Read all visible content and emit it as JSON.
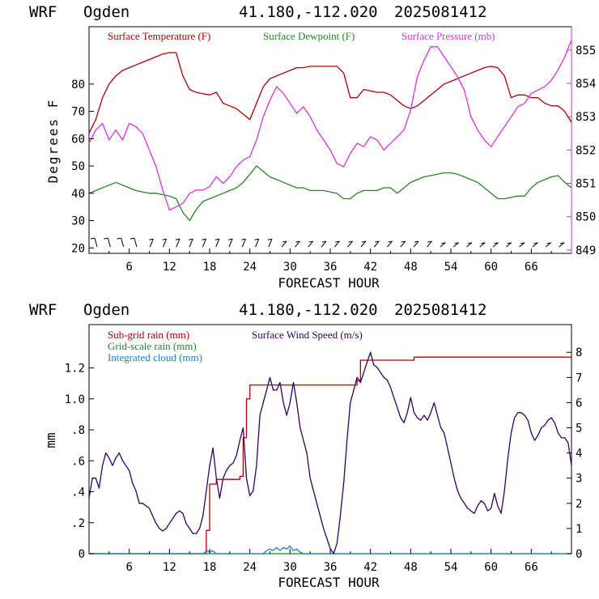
{
  "header": {
    "model": "WRF",
    "site": "Ogden",
    "coords": "41.180,-112.020",
    "run": "2025081412"
  },
  "colors": {
    "temp": "#b30000",
    "dew": "#228822",
    "pres": "#dd33dd",
    "rain_sub": "#b30000",
    "rain_grid": "#228822",
    "cloud": "#1e7fd0",
    "wind": "#330066"
  },
  "chart_data": [
    {
      "type": "line",
      "name": "surface",
      "xlabel": "FORECAST HOUR",
      "ylabel": "Degrees F",
      "xlim": [
        0,
        72
      ],
      "ylim": [
        18,
        101
      ],
      "y2lim": [
        848.9,
        855.7
      ],
      "x_ticks": [
        6,
        12,
        18,
        24,
        30,
        36,
        42,
        48,
        54,
        60,
        66
      ],
      "y_ticks": [
        20,
        30,
        40,
        50,
        60,
        70,
        80
      ],
      "y2_ticks": [
        849,
        850,
        851,
        852,
        853,
        854,
        855
      ],
      "legend": [
        "Surface Temperature (F)",
        "Surface Dewpoint (F)",
        "Surface Pressure (mb)"
      ],
      "series": [
        {
          "name": "Surface Temperature (F)",
          "axis": "left",
          "x": [
            0,
            1,
            2,
            3,
            4,
            5,
            6,
            7,
            8,
            9,
            10,
            11,
            12,
            13,
            14,
            15,
            16,
            17,
            18,
            19,
            20,
            21,
            22,
            23,
            24,
            25,
            26,
            27,
            28,
            29,
            30,
            31,
            32,
            33,
            34,
            35,
            36,
            37,
            38,
            39,
            40,
            41,
            42,
            43,
            44,
            45,
            46,
            47,
            48,
            49,
            50,
            51,
            52,
            53,
            54,
            55,
            56,
            57,
            58,
            59,
            60,
            61,
            62,
            63,
            64,
            65,
            66,
            67,
            68,
            69,
            70,
            71,
            72
          ],
          "y": [
            62,
            67,
            75,
            80,
            83,
            85,
            86,
            87,
            88,
            89,
            90,
            91,
            91.5,
            91.5,
            83,
            78,
            77,
            76.5,
            76,
            77,
            73,
            72,
            71,
            69,
            67,
            73,
            79,
            82,
            83,
            84,
            85,
            86,
            86,
            86.5,
            86.5,
            86.5,
            86.5,
            86.5,
            84,
            75,
            75,
            78,
            77.5,
            77,
            77,
            76,
            74,
            72,
            71,
            72,
            74,
            76,
            78,
            80,
            81,
            82,
            83,
            84,
            85,
            86,
            86.5,
            86,
            83,
            75,
            76,
            76,
            75,
            75,
            73,
            72,
            72,
            70,
            66
          ]
        },
        {
          "name": "Surface Dewpoint (F)",
          "axis": "left",
          "x": [
            0,
            1,
            2,
            3,
            4,
            5,
            6,
            7,
            8,
            9,
            10,
            11,
            12,
            13,
            14,
            15,
            16,
            17,
            18,
            19,
            20,
            21,
            22,
            23,
            24,
            25,
            26,
            27,
            28,
            29,
            30,
            31,
            32,
            33,
            34,
            35,
            36,
            37,
            38,
            39,
            40,
            41,
            42,
            43,
            44,
            45,
            46,
            47,
            48,
            49,
            50,
            51,
            52,
            53,
            54,
            55,
            56,
            57,
            58,
            59,
            60,
            61,
            62,
            63,
            64,
            65,
            66,
            67,
            68,
            69,
            70,
            71,
            72
          ],
          "y": [
            40,
            41,
            42,
            43,
            44,
            43,
            42,
            41,
            40.5,
            40,
            40,
            39.5,
            39,
            38,
            33,
            30,
            34,
            37,
            38,
            39,
            40,
            41,
            42,
            44,
            47,
            50,
            48,
            46,
            45,
            44,
            43,
            42,
            42,
            41,
            41,
            41,
            40.5,
            40,
            38,
            38,
            40,
            41,
            41,
            41,
            42,
            42,
            40,
            42,
            44,
            45,
            46,
            46.5,
            47,
            47.5,
            47.5,
            47,
            46,
            45,
            44,
            42,
            40,
            38,
            38,
            38.5,
            39,
            39,
            42,
            44,
            45,
            46,
            46.5,
            44,
            42
          ]
        },
        {
          "name": "Surface Pressure (mb)",
          "axis": "right",
          "x": [
            0,
            1,
            2,
            3,
            4,
            5,
            6,
            7,
            8,
            9,
            10,
            11,
            12,
            13,
            14,
            15,
            16,
            17,
            18,
            19,
            20,
            21,
            22,
            23,
            24,
            25,
            26,
            27,
            28,
            29,
            30,
            31,
            32,
            33,
            34,
            35,
            36,
            37,
            38,
            39,
            40,
            41,
            42,
            43,
            44,
            45,
            46,
            47,
            48,
            49,
            50,
            51,
            52,
            53,
            54,
            55,
            56,
            57,
            58,
            59,
            60,
            61,
            62,
            63,
            64,
            65,
            66,
            67,
            68,
            69,
            70,
            71,
            72
          ],
          "y": [
            852.2,
            852.6,
            852.8,
            852.3,
            852.6,
            852.3,
            852.8,
            852.7,
            852.5,
            852.0,
            851.5,
            850.8,
            850.2,
            850.3,
            850.4,
            850.7,
            850.8,
            850.8,
            850.9,
            851.2,
            851.0,
            851.2,
            851.5,
            851.7,
            851.8,
            852.3,
            853.0,
            853.5,
            853.9,
            853.7,
            853.4,
            853.1,
            853.3,
            853.0,
            852.6,
            852.3,
            852.0,
            851.6,
            851.5,
            851.9,
            852.2,
            852.1,
            852.4,
            852.3,
            852.0,
            852.2,
            852.4,
            852.6,
            853.2,
            854.2,
            854.7,
            855.1,
            855.1,
            854.8,
            854.5,
            854.2,
            853.8,
            853.0,
            852.6,
            852.3,
            852.1,
            852.4,
            852.7,
            853.0,
            853.3,
            853.4,
            853.7,
            853.8,
            853.9,
            854.1,
            854.4,
            854.8,
            855.3
          ]
        }
      ]
    },
    {
      "type": "line",
      "name": "precip",
      "xlabel": "FORECAST HOUR",
      "ylabel": "mm",
      "xlim": [
        0,
        72
      ],
      "ylim": [
        0,
        1.48
      ],
      "y2lim": [
        0,
        9.1
      ],
      "x_ticks": [
        6,
        12,
        18,
        24,
        30,
        36,
        42,
        48,
        54,
        60,
        66
      ],
      "y_ticks": [
        0,
        0.2,
        0.4,
        0.6,
        0.8,
        1.0,
        1.2
      ],
      "y_tick_labels": [
        "0",
        ".2",
        ".4",
        ".6",
        ".8",
        "1.0",
        "1.2"
      ],
      "y2_ticks": [
        0,
        1,
        2,
        3,
        4,
        5,
        6,
        7,
        8
      ],
      "legend": [
        "Sub-grid rain (mm)",
        "Grid-scale rain (mm)",
        "Integrated cloud (mm)",
        "Surface Wind Speed (m/s)"
      ],
      "series": [
        {
          "name": "Sub-grid rain (mm)",
          "axis": "left",
          "step": true,
          "x": [
            0,
            17,
            17.5,
            18,
            19,
            20,
            21,
            22,
            22.5,
            23,
            23.5,
            24,
            30,
            36,
            39,
            40,
            40.5,
            48,
            48.5,
            72
          ],
          "y": [
            0,
            0,
            0.15,
            0.45,
            0.48,
            0.48,
            0.48,
            0.48,
            0.5,
            0.75,
            1.0,
            1.09,
            1.09,
            1.09,
            1.09,
            1.12,
            1.25,
            1.25,
            1.27,
            1.27
          ]
        },
        {
          "name": "Grid-scale rain (mm)",
          "axis": "left",
          "x": [
            0,
            72
          ],
          "y": [
            0,
            0
          ]
        },
        {
          "name": "Integrated cloud (mm)",
          "axis": "left",
          "x": [
            0,
            17,
            17.6,
            18,
            18.4,
            19,
            26,
            26.5,
            27,
            27.5,
            28,
            28.5,
            29,
            29.5,
            30,
            30.5,
            31,
            31.5,
            32,
            72
          ],
          "y": [
            0,
            0,
            0.02,
            0.01,
            0.02,
            0,
            0,
            0.02,
            0.03,
            0.02,
            0.04,
            0.02,
            0.04,
            0.03,
            0.05,
            0.02,
            0.03,
            0.01,
            0,
            0
          ]
        },
        {
          "name": "Surface Wind Speed (m/s)",
          "axis": "right",
          "x": [
            0,
            0.5,
            1,
            1.5,
            2,
            2.5,
            3,
            3.5,
            4,
            4.5,
            5,
            5.5,
            6,
            6.5,
            7,
            7.5,
            8,
            8.5,
            9,
            9.5,
            10,
            10.5,
            11,
            11.5,
            12,
            12.5,
            13,
            13.5,
            14,
            14.5,
            15,
            15.5,
            16,
            16.5,
            17,
            17.5,
            18,
            18.5,
            19,
            19.5,
            20,
            20.5,
            21,
            21.5,
            22,
            22.5,
            23,
            23.5,
            24,
            24.5,
            25,
            25.5,
            26,
            26.5,
            27,
            27.5,
            28,
            28.5,
            29,
            29.5,
            30,
            30.5,
            31,
            31.5,
            32,
            32.5,
            33,
            33.5,
            34,
            34.5,
            35,
            35.5,
            36,
            36.5,
            37,
            37.5,
            38,
            38.5,
            39,
            39.5,
            40,
            40.5,
            41,
            41.5,
            42,
            42.5,
            43,
            43.5,
            44,
            44.5,
            45,
            45.5,
            46,
            46.5,
            47,
            47.5,
            48,
            48.5,
            49,
            49.5,
            50,
            50.5,
            51,
            51.5,
            52,
            52.5,
            53,
            53.5,
            54,
            54.5,
            55,
            55.5,
            56,
            56.5,
            57,
            57.5,
            58,
            58.5,
            59,
            59.5,
            60,
            60.5,
            61,
            61.5,
            62,
            62.5,
            63,
            63.5,
            64,
            64.5,
            65,
            65.5,
            66,
            66.5,
            67,
            67.5,
            68,
            68.5,
            69,
            69.5,
            70,
            70.5,
            71,
            71.5,
            72
          ],
          "y": [
            2.2,
            3.0,
            3.0,
            2.6,
            3.5,
            4.0,
            3.8,
            3.5,
            3.8,
            4.0,
            3.7,
            3.5,
            3.3,
            2.8,
            2.5,
            2.0,
            2.0,
            1.9,
            1.8,
            1.5,
            1.2,
            1.0,
            0.9,
            1.0,
            1.2,
            1.4,
            1.6,
            1.7,
            1.6,
            1.2,
            1.0,
            0.8,
            0.8,
            1.0,
            1.5,
            2.5,
            3.5,
            4.2,
            3.0,
            2.2,
            3.0,
            3.3,
            3.5,
            3.6,
            3.9,
            4.5,
            5.0,
            3.0,
            2.3,
            2.5,
            3.5,
            5.5,
            6.0,
            6.5,
            7.0,
            6.5,
            6.5,
            6.8,
            6.0,
            5.5,
            6.0,
            6.8,
            6.0,
            5.0,
            4.5,
            4.0,
            3.0,
            2.5,
            2.0,
            1.5,
            1.0,
            0.6,
            0.2,
            0.0,
            0.4,
            1.5,
            2.8,
            4.5,
            6.0,
            6.5,
            7.0,
            6.8,
            7.2,
            7.6,
            8.0,
            7.5,
            7.4,
            7.2,
            7.0,
            6.9,
            6.6,
            6.2,
            5.8,
            5.4,
            5.2,
            5.6,
            6.2,
            5.6,
            5.4,
            5.3,
            5.5,
            5.3,
            5.6,
            6.0,
            5.5,
            5.0,
            4.8,
            4.2,
            3.6,
            3.0,
            2.5,
            2.2,
            2.0,
            1.8,
            1.7,
            1.6,
            1.9,
            2.1,
            2.0,
            1.7,
            1.8,
            2.4,
            1.9,
            1.6,
            2.5,
            3.8,
            4.8,
            5.4,
            5.6,
            5.6,
            5.5,
            5.3,
            4.8,
            4.5,
            4.7,
            5.0,
            5.1,
            5.3,
            5.4,
            5.2,
            4.8,
            4.6,
            4.6,
            4.4,
            3.5
          ]
        }
      ]
    }
  ]
}
